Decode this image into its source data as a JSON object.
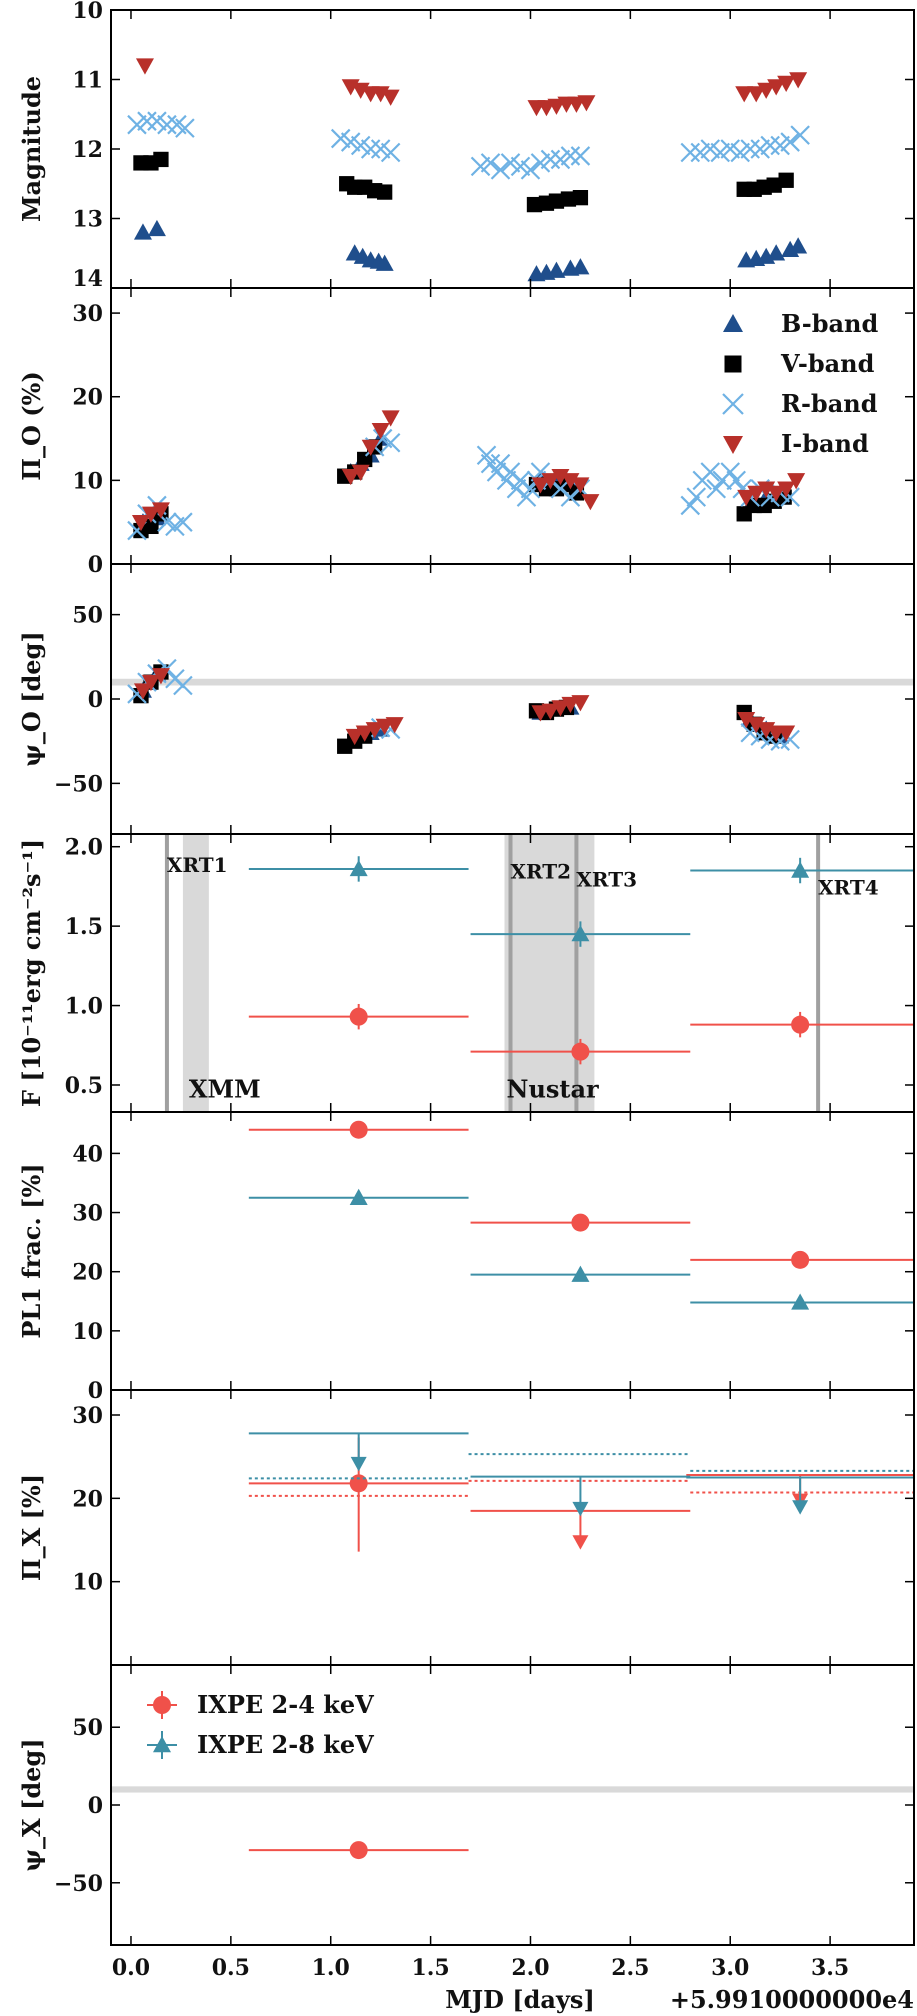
{
  "figure": {
    "xlabel": "MJD [days]",
    "x_offset_label": "+5.9910000000e4",
    "xlim": [
      -0.1,
      3.92
    ],
    "xticks": [
      0.0,
      0.5,
      1.0,
      1.5,
      2.0,
      2.5,
      3.0,
      3.5
    ],
    "xtick_labels": [
      "0.0",
      "0.5",
      "1.0",
      "1.5",
      "2.0",
      "2.5",
      "3.0",
      "3.5"
    ]
  },
  "colors": {
    "B": "#1f4e8c",
    "V": "#000000",
    "R": "#6fb2e4",
    "I": "#b8302a",
    "ixpe_2_4": "#f0514a",
    "ixpe_2_8": "#3d8fa6",
    "band_gray": "#d9d9d9",
    "line_gray": "#a0a0a0"
  },
  "chart_data": [
    {
      "type": "scatter",
      "panel": "magnitude",
      "ylabel": "Magnitude",
      "ylim": [
        14,
        10
      ],
      "yticks": [
        10,
        11,
        12,
        13,
        14
      ],
      "ytick_labels": [
        "10",
        "11",
        "12",
        "13",
        "14"
      ],
      "series": [
        {
          "name": "B-band",
          "marker": "triangle-up",
          "x": [
            0.06,
            0.13,
            1.12,
            1.16,
            1.2,
            1.24,
            1.27,
            2.03,
            2.08,
            2.13,
            2.2,
            2.25,
            3.08,
            3.13,
            3.18,
            3.23,
            3.3,
            3.34
          ],
          "y": [
            13.2,
            13.15,
            13.5,
            13.55,
            13.6,
            13.62,
            13.65,
            13.8,
            13.78,
            13.75,
            13.72,
            13.7,
            13.6,
            13.58,
            13.55,
            13.5,
            13.45,
            13.4
          ]
        },
        {
          "name": "V-band",
          "marker": "square",
          "x": [
            0.05,
            0.1,
            0.15,
            1.08,
            1.12,
            1.17,
            1.22,
            1.27,
            2.02,
            2.08,
            2.13,
            2.19,
            2.25,
            3.07,
            3.12,
            3.17,
            3.22,
            3.28
          ],
          "y": [
            12.2,
            12.2,
            12.15,
            12.5,
            12.55,
            12.55,
            12.6,
            12.62,
            12.8,
            12.78,
            12.75,
            12.72,
            12.7,
            12.58,
            12.58,
            12.55,
            12.52,
            12.45
          ]
        },
        {
          "name": "R-band",
          "marker": "x",
          "x": [
            0.03,
            0.08,
            0.13,
            0.18,
            0.23,
            0.27,
            1.05,
            1.1,
            1.15,
            1.2,
            1.25,
            1.3,
            1.75,
            1.8,
            1.85,
            1.9,
            1.95,
            2.0,
            2.05,
            2.1,
            2.15,
            2.2,
            2.25,
            2.8,
            2.85,
            2.9,
            2.95,
            3.0,
            3.05,
            3.1,
            3.15,
            3.2,
            3.25,
            3.3,
            3.35
          ],
          "y": [
            11.65,
            11.6,
            11.6,
            11.65,
            11.65,
            11.7,
            11.85,
            11.9,
            11.95,
            12.0,
            12.0,
            12.05,
            12.25,
            12.2,
            12.3,
            12.2,
            12.25,
            12.3,
            12.2,
            12.15,
            12.15,
            12.1,
            12.1,
            12.05,
            12.05,
            12.0,
            12.05,
            12.0,
            12.05,
            12.0,
            12.0,
            11.95,
            11.95,
            11.9,
            11.8
          ]
        },
        {
          "name": "I-band",
          "marker": "triangle-down",
          "x": [
            0.07,
            1.1,
            1.15,
            1.2,
            1.25,
            1.3,
            2.03,
            2.08,
            2.13,
            2.18,
            2.23,
            2.28,
            3.07,
            3.13,
            3.18,
            3.23,
            3.28,
            3.34
          ],
          "y": [
            10.8,
            11.1,
            11.15,
            11.2,
            11.2,
            11.25,
            11.4,
            11.4,
            11.38,
            11.35,
            11.35,
            11.33,
            11.2,
            11.2,
            11.15,
            11.1,
            11.05,
            11.0
          ]
        }
      ]
    },
    {
      "type": "scatter",
      "panel": "optical-polarization-degree",
      "ylabel": "Π_O (%)",
      "ylim": [
        0,
        33
      ],
      "yticks": [
        0,
        10,
        20,
        30
      ],
      "ytick_labels": [
        "0",
        "10",
        "20",
        "30"
      ],
      "series": [
        {
          "name": "B-band",
          "marker": "triangle-up",
          "x": [
            0.06,
            0.13,
            1.1,
            1.15,
            1.2,
            1.25,
            2.05,
            2.12,
            2.2,
            3.1,
            3.18,
            3.25
          ],
          "y": [
            5,
            5.5,
            11,
            12,
            13,
            15,
            10,
            10,
            9.5,
            7,
            8,
            8.5
          ]
        },
        {
          "name": "V-band",
          "marker": "square",
          "x": [
            0.05,
            0.1,
            0.15,
            1.07,
            1.12,
            1.17,
            1.22,
            2.03,
            2.08,
            2.13,
            2.18,
            2.23,
            3.07,
            3.12,
            3.17,
            3.22,
            3.27
          ],
          "y": [
            4,
            4.5,
            6,
            10.5,
            11,
            12.5,
            14,
            9.5,
            9,
            9,
            9.5,
            8.5,
            6,
            7,
            7,
            7.5,
            8
          ]
        },
        {
          "name": "R-band",
          "marker": "x",
          "x": [
            0.03,
            0.08,
            0.13,
            0.18,
            0.22,
            0.26,
            1.22,
            1.26,
            1.3,
            1.78,
            1.8,
            1.83,
            1.85,
            1.88,
            1.9,
            1.93,
            1.95,
            1.98,
            2.0,
            2.03,
            2.05,
            2.1,
            2.15,
            2.2,
            2.25,
            2.8,
            2.83,
            2.86,
            2.9,
            2.93,
            2.96,
            3.0,
            3.03,
            3.06,
            3.1,
            3.15,
            3.2,
            3.25,
            3.3
          ],
          "y": [
            4,
            6,
            7,
            5,
            4.5,
            5,
            14,
            15,
            14.5,
            13,
            12,
            11,
            12,
            10,
            11,
            9,
            10,
            8,
            9,
            10,
            11,
            10,
            9,
            8,
            9,
            7,
            8,
            10,
            11,
            9,
            10,
            11,
            10,
            9,
            8,
            9,
            8,
            8.5,
            8
          ]
        },
        {
          "name": "I-band",
          "marker": "triangle-down",
          "x": [
            0.05,
            0.1,
            0.15,
            1.1,
            1.15,
            1.2,
            1.25,
            1.3,
            2.05,
            2.1,
            2.15,
            2.2,
            2.25,
            2.3,
            3.08,
            3.13,
            3.18,
            3.23,
            3.28,
            3.33
          ],
          "y": [
            5,
            6,
            6.5,
            10.5,
            11,
            14,
            16,
            17.5,
            9.5,
            10,
            10.5,
            10,
            9.5,
            7.5,
            8,
            8.5,
            9,
            8.5,
            9,
            10
          ]
        }
      ],
      "legend": {
        "position": "top-right",
        "entries": [
          "B-band",
          "V-band",
          "R-band",
          "I-band"
        ]
      }
    },
    {
      "type": "scatter",
      "panel": "optical-polarization-angle",
      "ylabel": "ψ_O [deg]",
      "ylim": [
        -80,
        80
      ],
      "yticks": [
        -50,
        0,
        50
      ],
      "ytick_labels": [
        "−50",
        "0",
        "50"
      ],
      "reference_band": {
        "y": 10,
        "half_width": 2
      },
      "series": [
        {
          "name": "B-band",
          "marker": "triangle-up",
          "x": [
            0.06,
            0.13,
            1.1,
            1.15,
            1.2,
            1.25,
            2.05,
            2.12,
            2.2,
            3.1,
            3.18,
            3.25
          ],
          "y": [
            5,
            15,
            -25,
            -22,
            -20,
            -18,
            -8,
            -6,
            -5,
            -12,
            -18,
            -22
          ]
        },
        {
          "name": "V-band",
          "marker": "square",
          "x": [
            0.05,
            0.1,
            0.15,
            1.07,
            1.12,
            1.17,
            2.03,
            2.08,
            2.13,
            2.18,
            3.07,
            3.12,
            3.17,
            3.22
          ],
          "y": [
            2,
            10,
            16,
            -28,
            -25,
            -22,
            -7,
            -8,
            -6,
            -5,
            -8,
            -15,
            -20,
            -22
          ]
        },
        {
          "name": "R-band",
          "marker": "x",
          "x": [
            0.03,
            0.08,
            0.13,
            0.18,
            0.22,
            0.26,
            1.25,
            1.3,
            3.1,
            3.15,
            3.2,
            3.25,
            3.3
          ],
          "y": [
            3,
            10,
            15,
            18,
            12,
            8,
            -17,
            -18,
            -20,
            -22,
            -24,
            -25,
            -24
          ]
        },
        {
          "name": "I-band",
          "marker": "triangle-down",
          "x": [
            0.06,
            0.1,
            0.15,
            1.12,
            1.17,
            1.22,
            1.27,
            1.32,
            2.05,
            2.1,
            2.15,
            2.2,
            2.25,
            3.08,
            3.13,
            3.18,
            3.23,
            3.28
          ],
          "y": [
            5,
            10,
            14,
            -22,
            -20,
            -18,
            -16,
            -15,
            -8,
            -7,
            -5,
            -3,
            -2,
            -12,
            -15,
            -18,
            -20,
            -20
          ]
        }
      ]
    },
    {
      "type": "scatter",
      "panel": "x-ray-flux",
      "ylabel": "F [10⁻¹¹erg cm⁻²s⁻¹]",
      "ylim": [
        0.33,
        2.08
      ],
      "yticks": [
        0.5,
        1.0,
        1.5,
        2.0
      ],
      "ytick_labels": [
        "0.5",
        "1.0",
        "1.5",
        "2.0"
      ],
      "gray_bands": [
        [
          0.26,
          0.39
        ],
        [
          1.87,
          2.32
        ]
      ],
      "vertical_lines": [
        0.18,
        1.9,
        2.23,
        3.44
      ],
      "annotations": [
        {
          "text": "XRT1",
          "x": 0.18,
          "y": 1.84
        },
        {
          "text": "XRT2",
          "x": 1.9,
          "y": 1.8
        },
        {
          "text": "XRT3",
          "x": 2.23,
          "y": 1.75
        },
        {
          "text": "XRT4",
          "x": 3.44,
          "y": 1.7
        },
        {
          "text": "XMM",
          "x": 0.29,
          "y": 0.42
        },
        {
          "text": "Nustar",
          "x": 1.88,
          "y": 0.42
        }
      ],
      "series": [
        {
          "name": "IXPE 2-4 keV",
          "marker": "circle",
          "x": [
            1.14,
            2.25,
            3.35
          ],
          "y": [
            0.93,
            0.71,
            0.88
          ],
          "xerr_lo": [
            0.55,
            0.55,
            0.55
          ],
          "xerr_hi": [
            0.55,
            0.55,
            0.57
          ],
          "yerr": [
            0.08,
            0.08,
            0.08
          ]
        },
        {
          "name": "IXPE 2-8 keV",
          "marker": "triangle-up",
          "x": [
            1.14,
            2.25,
            3.35
          ],
          "y": [
            1.86,
            1.45,
            1.85
          ],
          "xerr_lo": [
            0.55,
            0.55,
            0.55
          ],
          "xerr_hi": [
            0.55,
            0.55,
            0.57
          ],
          "yerr": [
            0.08,
            0.08,
            0.08
          ]
        }
      ]
    },
    {
      "type": "scatter",
      "panel": "pl1-fraction",
      "ylabel": "PL1 frac. [%]",
      "ylim": [
        0,
        47
      ],
      "yticks": [
        0,
        10,
        20,
        30,
        40
      ],
      "ytick_labels": [
        "0",
        "10",
        "20",
        "30",
        "40"
      ],
      "series": [
        {
          "name": "IXPE 2-4 keV",
          "marker": "circle",
          "x": [
            1.14,
            2.25,
            3.35
          ],
          "y": [
            44,
            28.3,
            22
          ],
          "xerr_lo": [
            0.55,
            0.55,
            0.55
          ],
          "xerr_hi": [
            0.55,
            0.55,
            0.57
          ]
        },
        {
          "name": "IXPE 2-8 keV",
          "marker": "triangle-up",
          "x": [
            1.14,
            2.25,
            3.35
          ],
          "y": [
            32.5,
            19.5,
            14.8
          ],
          "xerr_lo": [
            0.55,
            0.55,
            0.55
          ],
          "xerr_hi": [
            0.55,
            0.55,
            0.57
          ]
        }
      ]
    },
    {
      "type": "scatter",
      "panel": "x-ray-polarization-degree",
      "ylabel": "Π_X [%]",
      "ylim": [
        0,
        33
      ],
      "yticks": [
        10,
        20,
        30
      ],
      "ytick_labels": [
        "10",
        "20",
        "30"
      ],
      "series": [
        {
          "name": "IXPE 2-4 keV",
          "marker": "circle",
          "x": [
            1.14
          ],
          "y": [
            21.8
          ],
          "xerr_lo": [
            0.55
          ],
          "xerr_hi": [
            0.55
          ],
          "yerr_lo": [
            8.2
          ],
          "yerr_hi": [
            5.5
          ],
          "upper_limits": [
            {
              "x": 2.25,
              "y": 18.5,
              "arrow_to": 14.8,
              "xerr": 0.55
            },
            {
              "x": 3.35,
              "y": 22.8,
              "arrow_to": 19.8,
              "xerr": 0.57
            }
          ],
          "mdp_dotted": [
            {
              "x0": 0.59,
              "x1": 1.69,
              "y": 20.3
            },
            {
              "x0": 1.69,
              "x1": 2.8,
              "y": 22.1
            },
            {
              "x0": 2.8,
              "x1": 3.92,
              "y": 20.7
            }
          ]
        },
        {
          "name": "IXPE 2-8 keV",
          "marker": "triangle-up",
          "upper_limits": [
            {
              "x": 1.14,
              "y": 27.8,
              "arrow_to": 24.2,
              "xerr": 0.55
            },
            {
              "x": 2.25,
              "y": 22.6,
              "arrow_to": 18.8,
              "xerr": 0.55
            },
            {
              "x": 3.35,
              "y": 22.5,
              "arrow_to": 19.0,
              "xerr": 0.57
            }
          ],
          "mdp_dotted": [
            {
              "x0": 0.59,
              "x1": 1.69,
              "y": 22.4
            },
            {
              "x0": 1.69,
              "x1": 2.8,
              "y": 25.3
            },
            {
              "x0": 2.8,
              "x1": 3.92,
              "y": 23.3
            }
          ]
        }
      ]
    },
    {
      "type": "scatter",
      "panel": "x-ray-polarization-angle",
      "ylabel": "ψ_X [deg]",
      "ylim": [
        -90,
        90
      ],
      "yticks": [
        -50,
        0,
        50
      ],
      "ytick_labels": [
        "−50",
        "0",
        "50"
      ],
      "reference_band": {
        "y": 10,
        "half_width": 2
      },
      "series": [
        {
          "name": "IXPE 2-4 keV",
          "marker": "circle",
          "x": [
            1.14
          ],
          "y": [
            -29
          ],
          "xerr_lo": [
            0.55
          ],
          "xerr_hi": [
            0.55
          ],
          "yerr": [
            5
          ]
        }
      ],
      "legend": {
        "position": "top-left",
        "entries": [
          "IXPE 2-4 keV",
          "IXPE 2-8 keV"
        ]
      }
    }
  ]
}
